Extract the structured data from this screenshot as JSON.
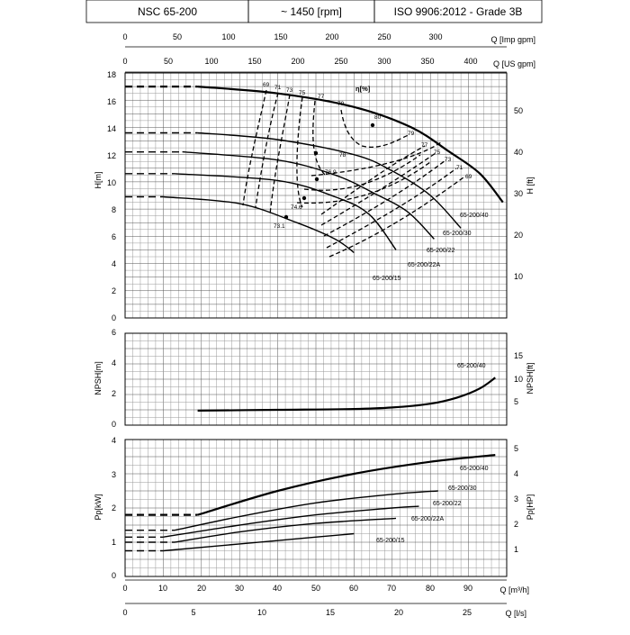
{
  "header": {
    "model": "NSC 65-200",
    "speed": "~ 1450 [rpm]",
    "standard": "ISO 9906:2012 - Grade 3B"
  },
  "axes": {
    "q_imp": {
      "label": "Q [Imp gpm]",
      "ticks": [
        "0",
        "50",
        "100",
        "150",
        "200",
        "250",
        "300"
      ]
    },
    "q_us": {
      "label": "Q [US gpm]",
      "ticks": [
        "0",
        "50",
        "100",
        "150",
        "200",
        "250",
        "300",
        "350",
        "400"
      ]
    },
    "q_m3h": {
      "label": "Q [m³/h]",
      "ticks": [
        "0",
        "10",
        "20",
        "30",
        "40",
        "50",
        "60",
        "70",
        "80",
        "90"
      ]
    },
    "q_ls": {
      "label": "Q [l/s]",
      "ticks": [
        "0",
        "5",
        "10",
        "15",
        "20",
        "25"
      ]
    },
    "h_m": {
      "label": "H[m]",
      "ticks": [
        "0",
        "2",
        "4",
        "6",
        "8",
        "10",
        "12",
        "14",
        "16",
        "18"
      ]
    },
    "h_ft": {
      "label": "H [ft]",
      "ticks": [
        "10",
        "20",
        "30",
        "40",
        "50"
      ]
    },
    "npsh_m": {
      "label": "NPSH[m]",
      "ticks": [
        "0",
        "2",
        "4",
        "6"
      ]
    },
    "npsh_ft": {
      "label": "NPSH[ft]",
      "ticks": [
        "5",
        "10",
        "15"
      ]
    },
    "p_kw": {
      "label": "Pp[kW]",
      "ticks": [
        "0",
        "1",
        "2",
        "3",
        "4"
      ]
    },
    "p_hp": {
      "label": "Pp[HP]",
      "ticks": [
        "1",
        "2",
        "3",
        "4",
        "5"
      ]
    }
  },
  "chart_data": {
    "type": "line",
    "x_unit": "m3/h",
    "eta_label": "η[%]",
    "head": {
      "ylim": [
        0,
        18
      ],
      "xlim": [
        0,
        100
      ],
      "series": [
        {
          "name": "65-200/40",
          "dash_x": [
            0,
            19
          ],
          "x": [
            19,
            40,
            60,
            75,
            85,
            93,
            99
          ],
          "y": [
            17,
            16.5,
            15.5,
            14,
            12.2,
            10.6,
            8.5
          ]
        },
        {
          "name": "65-200/30",
          "dash_x": [
            0,
            19
          ],
          "x": [
            19,
            40,
            60,
            70,
            80,
            88
          ],
          "y": [
            13.6,
            13.1,
            12,
            10.8,
            9,
            6.6
          ]
        },
        {
          "name": "65-200/22",
          "dash_x": [
            0,
            15
          ],
          "x": [
            15,
            40,
            55,
            65,
            74,
            81
          ],
          "y": [
            12.2,
            11.6,
            10.5,
            9.2,
            7.8,
            5.8
          ]
        },
        {
          "name": "65-200/22A",
          "dash_x": [
            0,
            13
          ],
          "x": [
            13,
            40,
            55,
            64,
            71
          ],
          "y": [
            10.6,
            10.1,
            8.9,
            7.6,
            5
          ]
        },
        {
          "name": "65-200/15",
          "dash_x": [
            0,
            10
          ],
          "x": [
            10,
            30,
            45,
            55,
            60
          ],
          "y": [
            8.9,
            8.4,
            7,
            5.8,
            4.8
          ]
        }
      ],
      "efficiency_labels": [
        "69",
        "71",
        "73",
        "75",
        "77",
        "79",
        "80",
        "79",
        "77",
        "75",
        "73",
        "71",
        "69",
        "78",
        "76.9",
        "74.6",
        "73.1"
      ]
    },
    "npsh": {
      "ylim": [
        0,
        6
      ],
      "series": [
        {
          "name": "65-200/40",
          "x": [
            19,
            40,
            60,
            70,
            80,
            87,
            93,
            97
          ],
          "y": [
            0.95,
            1,
            1.05,
            1.15,
            1.4,
            1.8,
            2.4,
            3.1
          ]
        }
      ]
    },
    "power": {
      "ylim": [
        0,
        4
      ],
      "series": [
        {
          "name": "65-200/40",
          "dash_x": [
            0,
            19
          ],
          "x": [
            19,
            40,
            60,
            80,
            97
          ],
          "y": [
            1.8,
            2.5,
            3.0,
            3.35,
            3.55
          ]
        },
        {
          "name": "65-200/30",
          "dash_x": [
            0,
            13
          ],
          "x": [
            13,
            30,
            50,
            70,
            82
          ],
          "y": [
            1.35,
            1.75,
            2.15,
            2.4,
            2.5
          ]
        },
        {
          "name": "65-200/22",
          "dash_x": [
            0,
            10
          ],
          "x": [
            10,
            30,
            50,
            70,
            77
          ],
          "y": [
            1.15,
            1.5,
            1.8,
            2.0,
            2.05
          ]
        },
        {
          "name": "65-200/22A",
          "dash_x": [
            0,
            13
          ],
          "x": [
            13,
            30,
            50,
            71
          ],
          "y": [
            1.0,
            1.3,
            1.55,
            1.7
          ]
        },
        {
          "name": "65-200/15",
          "dash_x": [
            0,
            10
          ],
          "x": [
            10,
            30,
            45,
            60
          ],
          "y": [
            0.75,
            0.95,
            1.1,
            1.25
          ]
        }
      ]
    }
  }
}
